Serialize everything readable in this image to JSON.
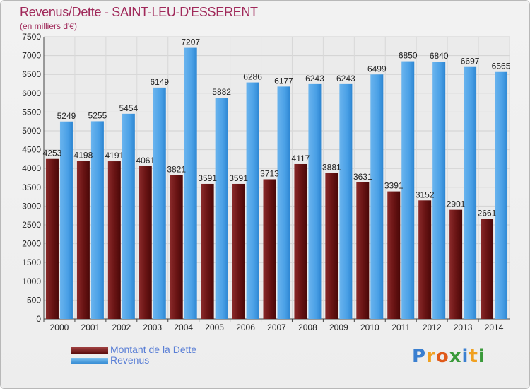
{
  "title": "Revenus/Dette - SAINT-LEU-D'ESSERENT",
  "subtitle": "(en milliers d'€)",
  "legend": {
    "debt_label": "Montant de la Dette",
    "revenue_label": "Revenus"
  },
  "logo": {
    "text": "Proxiti"
  },
  "colors": {
    "title": "#a0295a",
    "debt": "#7a1c1c",
    "revenue": "#4aa0e6",
    "legend_text": "#5a7fd6"
  },
  "chart_data": {
    "type": "bar",
    "categories": [
      "2000",
      "2001",
      "2002",
      "2003",
      "2004",
      "2005",
      "2006",
      "2007",
      "2008",
      "2009",
      "2010",
      "2011",
      "2012",
      "2013",
      "2014"
    ],
    "series": [
      {
        "name": "Montant de la Dette",
        "values": [
          4253,
          4198,
          4191,
          4061,
          3821,
          3591,
          3591,
          3713,
          4117,
          3881,
          3631,
          3391,
          3152,
          2901,
          2661
        ],
        "labels": [
          "4253",
          "4198",
          "4191",
          "4061",
          "3821",
          "3591",
          "3591",
          "3713",
          "4117",
          "3881",
          "3631",
          "3391",
          "3152",
          "2901",
          "2661"
        ]
      },
      {
        "name": "Revenus",
        "values": [
          5249,
          5255,
          5454,
          6149,
          7207,
          5882,
          6286,
          6177,
          6243,
          6243,
          6499,
          6850,
          6840,
          6697,
          6565
        ],
        "labels": [
          "5249",
          "5255",
          "5454",
          "6149",
          "7207",
          "5882",
          "6286",
          "6177",
          "6243",
          "6243",
          "6499",
          "6850",
          "6840",
          "6697",
          "6565"
        ]
      }
    ],
    "ylim": [
      0,
      7500
    ],
    "yticks": [
      0,
      500,
      1000,
      1500,
      2000,
      2500,
      3000,
      3500,
      4000,
      4500,
      5000,
      5500,
      6000,
      6500,
      7000,
      7500
    ],
    "grid": true,
    "legend_position": "bottom-left"
  }
}
